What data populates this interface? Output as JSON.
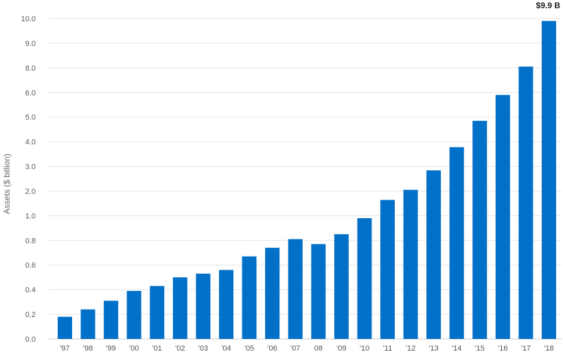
{
  "chart_data": {
    "type": "bar",
    "ylabel": "Assets ($ billion)",
    "categories": [
      "'97",
      "'98",
      "'99",
      "'00",
      "'01",
      "'02",
      "'03",
      "'04",
      "'05",
      "'06",
      "'07",
      "08",
      "'09",
      "'10",
      "'11",
      "'12",
      "'13",
      "'14",
      "'15",
      "'16",
      "'17",
      "'18"
    ],
    "values": [
      0.18,
      0.24,
      0.31,
      0.39,
      0.43,
      0.5,
      0.53,
      0.56,
      0.67,
      0.74,
      0.81,
      0.77,
      0.85,
      0.98,
      1.64,
      2.05,
      2.84,
      3.78,
      4.85,
      5.9,
      8.05,
      9.9
    ],
    "y_axis_ticks": [
      "0.0",
      "0.2",
      "0.4",
      "0.6",
      "0.8",
      "1.0",
      "2.0",
      "3.0",
      "4.0",
      "5.0",
      "6.0",
      "8.0",
      "9.0",
      "10.0"
    ],
    "data_labels": [
      {
        "category": "'18",
        "text": "$9.9 B"
      }
    ],
    "bar_color": "#0070c9",
    "grid": true
  }
}
